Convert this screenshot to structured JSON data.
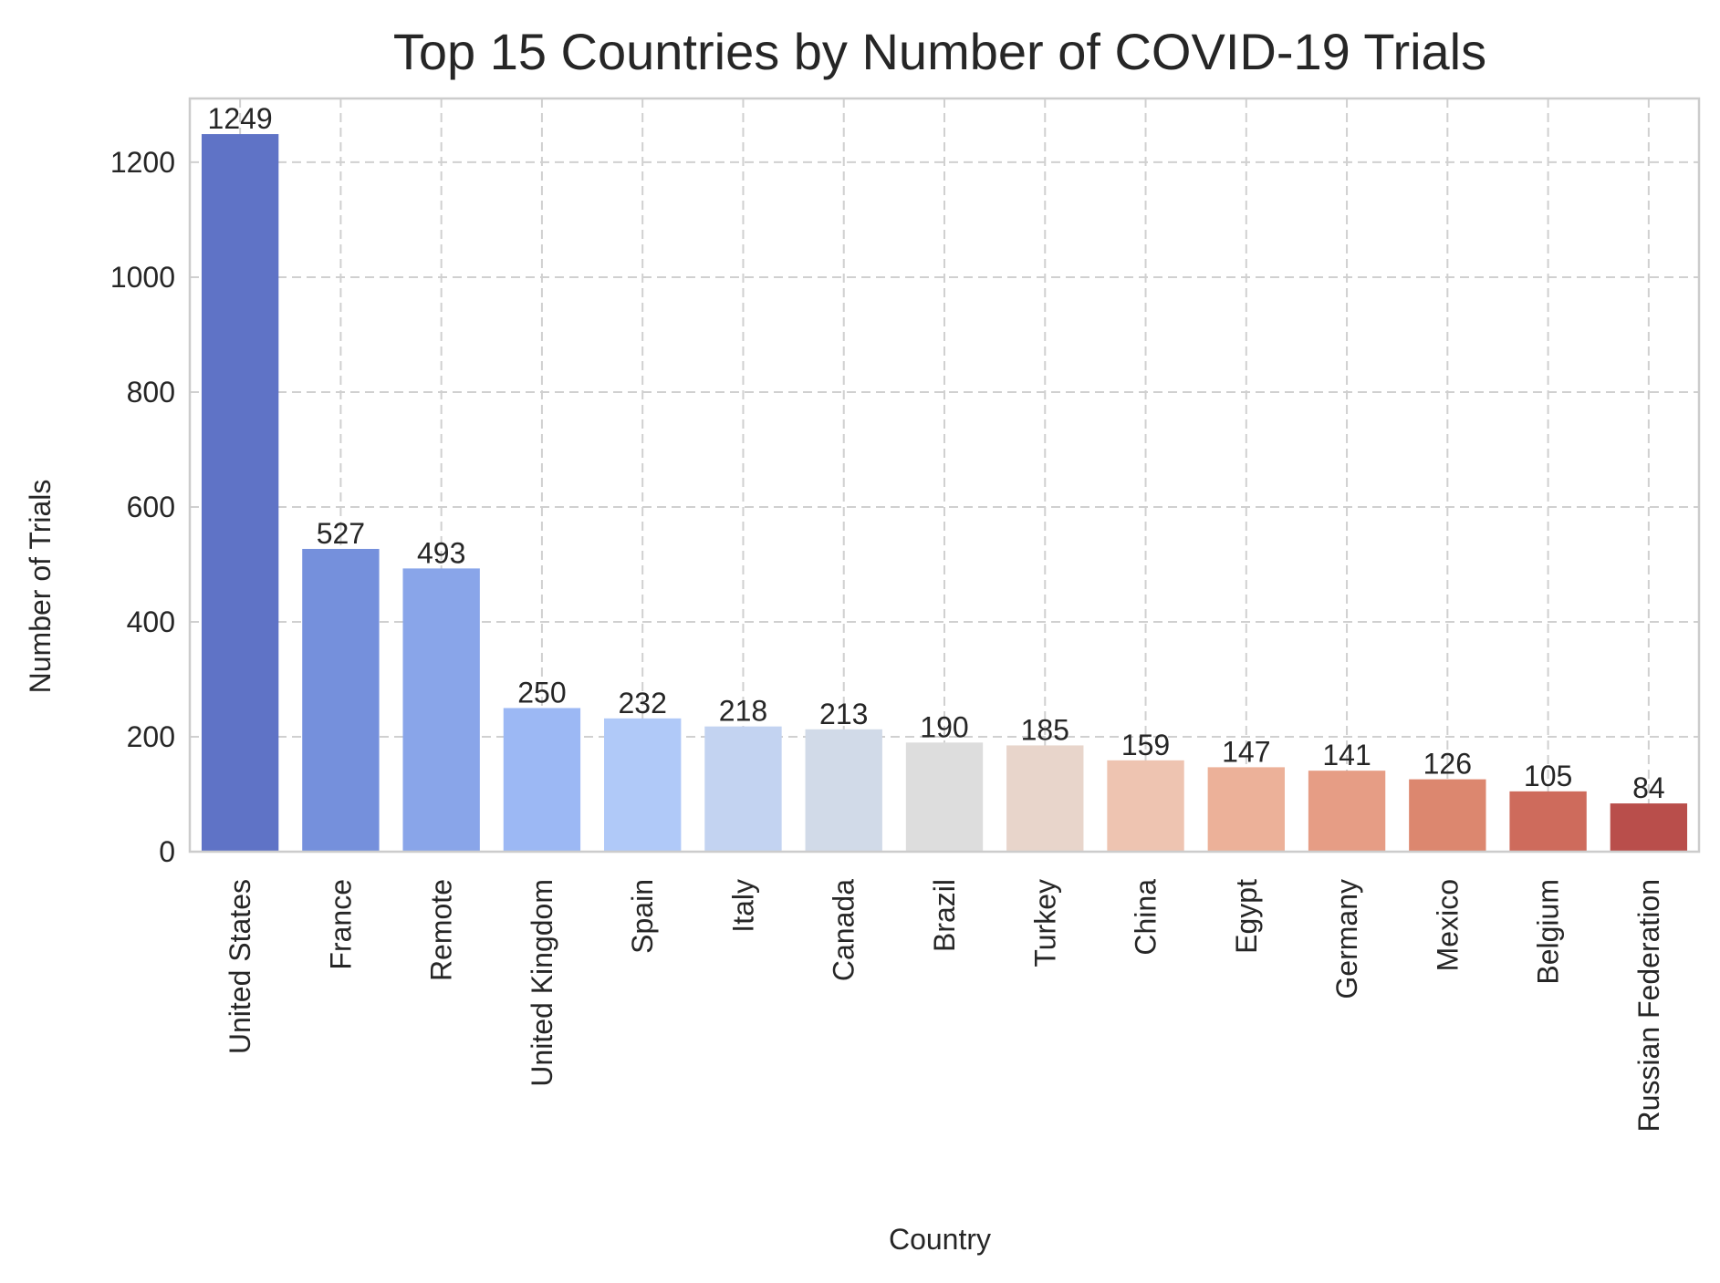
{
  "chart_data": {
    "type": "bar",
    "title": "Top 15 Countries by Number of COVID-19 Trials",
    "xlabel": "Country",
    "ylabel": "Number of Trials",
    "categories": [
      "United States",
      "France",
      "Remote",
      "United Kingdom",
      "Spain",
      "Italy",
      "Canada",
      "Brazil",
      "Turkey",
      "China",
      "Egypt",
      "Germany",
      "Mexico",
      "Belgium",
      "Russian Federation"
    ],
    "values": [
      1249,
      527,
      493,
      250,
      232,
      218,
      213,
      190,
      185,
      159,
      147,
      141,
      126,
      105,
      84
    ],
    "ylim": [
      0,
      1311
    ],
    "yticks": [
      0,
      200,
      400,
      600,
      800,
      1000,
      1200
    ],
    "grid": true,
    "colors": [
      "#5f73c6",
      "#7590dc",
      "#89a5e9",
      "#9cb8f4",
      "#b0c9f8",
      "#c3d3f1",
      "#d1dae8",
      "#dddddd",
      "#e8d5cb",
      "#eec4b1",
      "#ecb199",
      "#e69d85",
      "#dc876f",
      "#ce6b5c",
      "#b94e4b"
    ]
  }
}
